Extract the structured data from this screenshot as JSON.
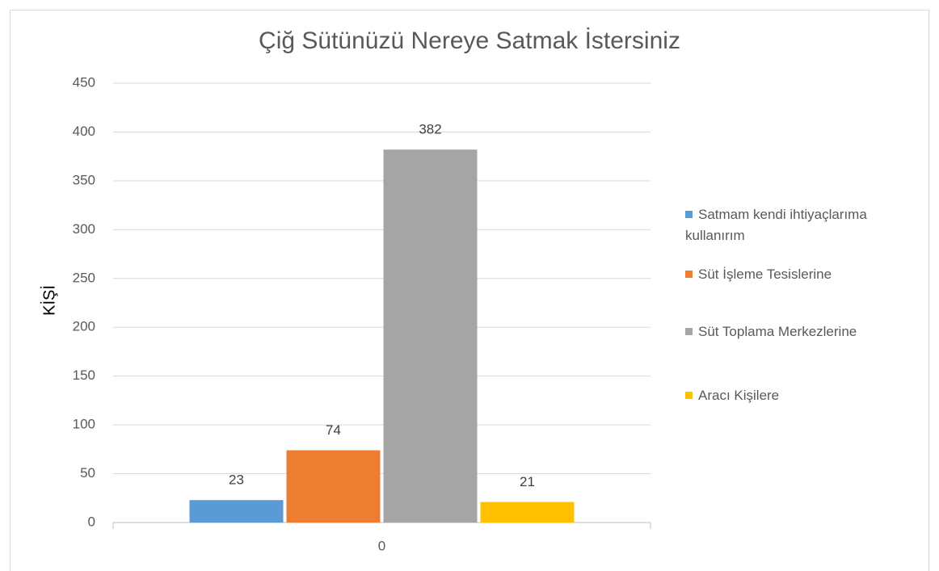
{
  "chart_data": {
    "type": "bar",
    "title": "Çiğ Sütünüzü Nereye Satmak İstersiniz",
    "y_label": "KİŞİ",
    "categories": [
      "0"
    ],
    "series": [
      {
        "name": "Satmam kendi ihtiyaçlarıma kullanırım",
        "color": "#5b9bd5",
        "values": [
          23
        ]
      },
      {
        "name": "Süt İşleme Tesislerine",
        "color": "#ed7d31",
        "values": [
          74
        ]
      },
      {
        "name": "Süt Toplama Merkezlerine",
        "color": "#a5a5a5",
        "values": [
          382
        ]
      },
      {
        "name": "Aracı Kişilere",
        "color": "#ffc000",
        "values": [
          21
        ]
      }
    ],
    "ylim": [
      0,
      450
    ],
    "yticks": [
      0,
      50,
      100,
      150,
      200,
      250,
      300,
      350,
      400,
      450
    ],
    "grid": true,
    "legend": "right"
  }
}
